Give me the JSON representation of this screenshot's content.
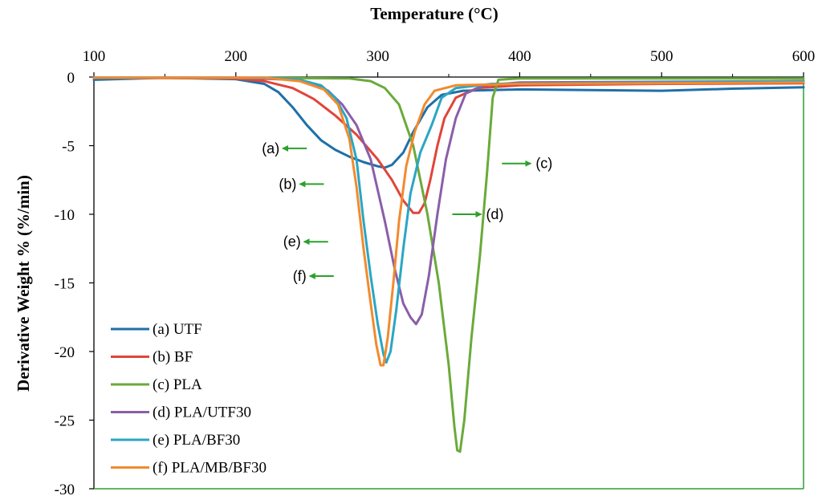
{
  "chart_data": {
    "type": "line",
    "title": "",
    "xlabel": "Temperature (°C)",
    "ylabel": "Derivative Weight % (%/min)",
    "xlim": [
      100,
      600
    ],
    "ylim": [
      -30,
      0
    ],
    "x_ticks": [
      "100",
      "200",
      "300",
      "400",
      "500",
      "600"
    ],
    "y_ticks": [
      "0",
      "-5",
      "-10",
      "-15",
      "-20",
      "-25",
      "-30"
    ],
    "grid": false,
    "legend_position": "bottom-left",
    "series": [
      {
        "key": "a",
        "name": "(a) UTF",
        "color": "#1f6fa8",
        "points": [
          [
            100,
            -0.2
          ],
          [
            150,
            -0.05
          ],
          [
            200,
            -0.15
          ],
          [
            220,
            -0.5
          ],
          [
            230,
            -1.1
          ],
          [
            240,
            -2.2
          ],
          [
            250,
            -3.5
          ],
          [
            260,
            -4.6
          ],
          [
            270,
            -5.3
          ],
          [
            280,
            -5.8
          ],
          [
            290,
            -6.2
          ],
          [
            300,
            -6.5
          ],
          [
            305,
            -6.6
          ],
          [
            310,
            -6.4
          ],
          [
            318,
            -5.5
          ],
          [
            325,
            -4.0
          ],
          [
            335,
            -2.2
          ],
          [
            345,
            -1.3
          ],
          [
            360,
            -1.0
          ],
          [
            400,
            -0.9
          ],
          [
            450,
            -0.95
          ],
          [
            500,
            -1.0
          ],
          [
            550,
            -0.85
          ],
          [
            600,
            -0.75
          ]
        ]
      },
      {
        "key": "b",
        "name": "(b) BF",
        "color": "#e0453a",
        "points": [
          [
            100,
            -0.05
          ],
          [
            200,
            -0.1
          ],
          [
            220,
            -0.3
          ],
          [
            240,
            -0.8
          ],
          [
            255,
            -1.6
          ],
          [
            270,
            -2.8
          ],
          [
            285,
            -4.2
          ],
          [
            300,
            -6.0
          ],
          [
            310,
            -7.5
          ],
          [
            318,
            -9.0
          ],
          [
            325,
            -9.9
          ],
          [
            329,
            -9.9
          ],
          [
            333,
            -9.2
          ],
          [
            337,
            -7.5
          ],
          [
            342,
            -5.0
          ],
          [
            347,
            -3.0
          ],
          [
            355,
            -1.5
          ],
          [
            370,
            -0.8
          ],
          [
            400,
            -0.6
          ],
          [
            500,
            -0.5
          ],
          [
            600,
            -0.45
          ]
        ]
      },
      {
        "key": "c",
        "name": "(c) PLA",
        "color": "#6aaa3a",
        "points": [
          [
            100,
            -0.05
          ],
          [
            200,
            -0.05
          ],
          [
            280,
            -0.1
          ],
          [
            295,
            -0.3
          ],
          [
            305,
            -0.8
          ],
          [
            315,
            -2.0
          ],
          [
            325,
            -5.0
          ],
          [
            335,
            -10.0
          ],
          [
            343,
            -15.0
          ],
          [
            350,
            -21.0
          ],
          [
            354,
            -25.5
          ],
          [
            356,
            -27.2
          ],
          [
            358,
            -27.3
          ],
          [
            361,
            -25.0
          ],
          [
            366,
            -19.0
          ],
          [
            372,
            -13.0
          ],
          [
            377,
            -7.0
          ],
          [
            381,
            -1.5
          ],
          [
            385,
            -0.2
          ],
          [
            400,
            -0.1
          ],
          [
            500,
            -0.1
          ],
          [
            600,
            -0.1
          ]
        ]
      },
      {
        "key": "d",
        "name": "(d) PLA/UTF30",
        "color": "#8b5ea8",
        "points": [
          [
            100,
            -0.05
          ],
          [
            200,
            -0.05
          ],
          [
            240,
            -0.2
          ],
          [
            255,
            -0.5
          ],
          [
            265,
            -1.0
          ],
          [
            275,
            -2.0
          ],
          [
            285,
            -3.5
          ],
          [
            295,
            -6.0
          ],
          [
            305,
            -10.5
          ],
          [
            312,
            -14.0
          ],
          [
            318,
            -16.5
          ],
          [
            323,
            -17.5
          ],
          [
            327,
            -18.0
          ],
          [
            331,
            -17.3
          ],
          [
            336,
            -14.5
          ],
          [
            342,
            -10.0
          ],
          [
            348,
            -6.0
          ],
          [
            355,
            -3.0
          ],
          [
            362,
            -1.2
          ],
          [
            375,
            -0.6
          ],
          [
            400,
            -0.4
          ],
          [
            600,
            -0.3
          ]
        ]
      },
      {
        "key": "e",
        "name": "(e) PLA/BF30",
        "color": "#2aa6c4",
        "points": [
          [
            100,
            -0.05
          ],
          [
            220,
            -0.05
          ],
          [
            245,
            -0.2
          ],
          [
            260,
            -0.6
          ],
          [
            270,
            -1.5
          ],
          [
            278,
            -3.0
          ],
          [
            285,
            -6.0
          ],
          [
            290,
            -10.5
          ],
          [
            295,
            -14.5
          ],
          [
            300,
            -18.0
          ],
          [
            304,
            -20.2
          ],
          [
            306,
            -20.8
          ],
          [
            309,
            -20.0
          ],
          [
            313,
            -17.0
          ],
          [
            318,
            -12.5
          ],
          [
            323,
            -8.5
          ],
          [
            330,
            -5.5
          ],
          [
            338,
            -3.5
          ],
          [
            345,
            -1.5
          ],
          [
            355,
            -0.8
          ],
          [
            380,
            -0.5
          ],
          [
            600,
            -0.3
          ]
        ]
      },
      {
        "key": "f",
        "name": "(f) PLA/MB/BF30",
        "color": "#f28a2e",
        "points": [
          [
            100,
            -0.05
          ],
          [
            220,
            -0.05
          ],
          [
            245,
            -0.3
          ],
          [
            262,
            -0.9
          ],
          [
            272,
            -2.0
          ],
          [
            280,
            -4.5
          ],
          [
            285,
            -8.0
          ],
          [
            290,
            -12.5
          ],
          [
            295,
            -16.5
          ],
          [
            299,
            -19.5
          ],
          [
            302,
            -21.0
          ],
          [
            304,
            -21.0
          ],
          [
            307,
            -19.0
          ],
          [
            311,
            -15.0
          ],
          [
            315,
            -10.5
          ],
          [
            320,
            -6.5
          ],
          [
            326,
            -4.0
          ],
          [
            333,
            -2.0
          ],
          [
            340,
            -1.0
          ],
          [
            355,
            -0.6
          ],
          [
            400,
            -0.5
          ],
          [
            600,
            -0.4
          ]
        ]
      }
    ],
    "annotations": [
      {
        "label": "(a)",
        "x": 250,
        "y": -5.2,
        "arrow": "left",
        "color": "#2ca02c"
      },
      {
        "label": "(b)",
        "x": 262,
        "y": -7.8,
        "arrow": "left",
        "color": "#2ca02c"
      },
      {
        "label": "(c)",
        "x": 396,
        "y": -6.3,
        "arrow": "right",
        "color": "#2ca02c"
      },
      {
        "label": "(d)",
        "x": 361,
        "y": -10.0,
        "arrow": "right",
        "color": "#2ca02c"
      },
      {
        "label": "(e)",
        "x": 265,
        "y": -12.0,
        "arrow": "left",
        "color": "#2ca02c"
      },
      {
        "label": "(f)",
        "x": 269,
        "y": -14.5,
        "arrow": "left",
        "color": "#2ca02c"
      }
    ]
  }
}
